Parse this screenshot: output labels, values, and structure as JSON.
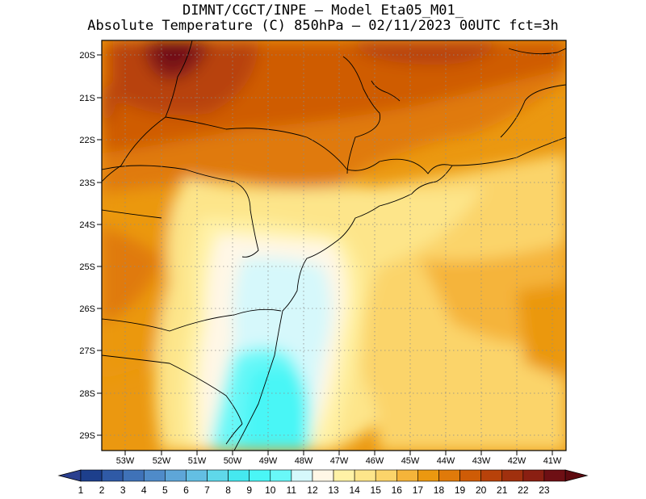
{
  "title": {
    "line1": "DIMNT/CGCT/INPE –  Model Eta05_M01_",
    "line2": "Absolute Temperature (C) 850hPa –  02/11/2023 00UTC fct=3h"
  },
  "map": {
    "lat_labels": [
      "20S",
      "21S",
      "22S",
      "23S",
      "24S",
      "25S",
      "26S",
      "27S",
      "28S",
      "29S"
    ],
    "lon_labels": [
      "53W",
      "52W",
      "51W",
      "50W",
      "49W",
      "48W",
      "47W",
      "46W",
      "45W",
      "44W",
      "43W",
      "42W",
      "41W"
    ],
    "grid": "dotted"
  },
  "colorbar": {
    "labels": [
      "1",
      "2",
      "3",
      "4",
      "5",
      "6",
      "7",
      "8",
      "9",
      "10",
      "11",
      "12",
      "13",
      "14",
      "15",
      "16",
      "17",
      "18",
      "19",
      "20",
      "21",
      "22",
      "23"
    ],
    "colors": [
      "#1d3f8c",
      "#2f5aa6",
      "#3f72b8",
      "#4f8bc9",
      "#5ea6d8",
      "#63bfe3",
      "#5fd8ea",
      "#45e8ef",
      "#4af6f6",
      "#69f8f8",
      "#d6f8fb",
      "#fff7e6",
      "#fff2a6",
      "#fde58a",
      "#fbd46a",
      "#f5b43a",
      "#eb9810",
      "#e07a0a",
      "#cf5c06",
      "#b8420a",
      "#a0300e",
      "#8a1f12",
      "#6e0f14"
    ],
    "left_tip": "#2a3f8f",
    "right_tip": "#5e0a10"
  }
}
